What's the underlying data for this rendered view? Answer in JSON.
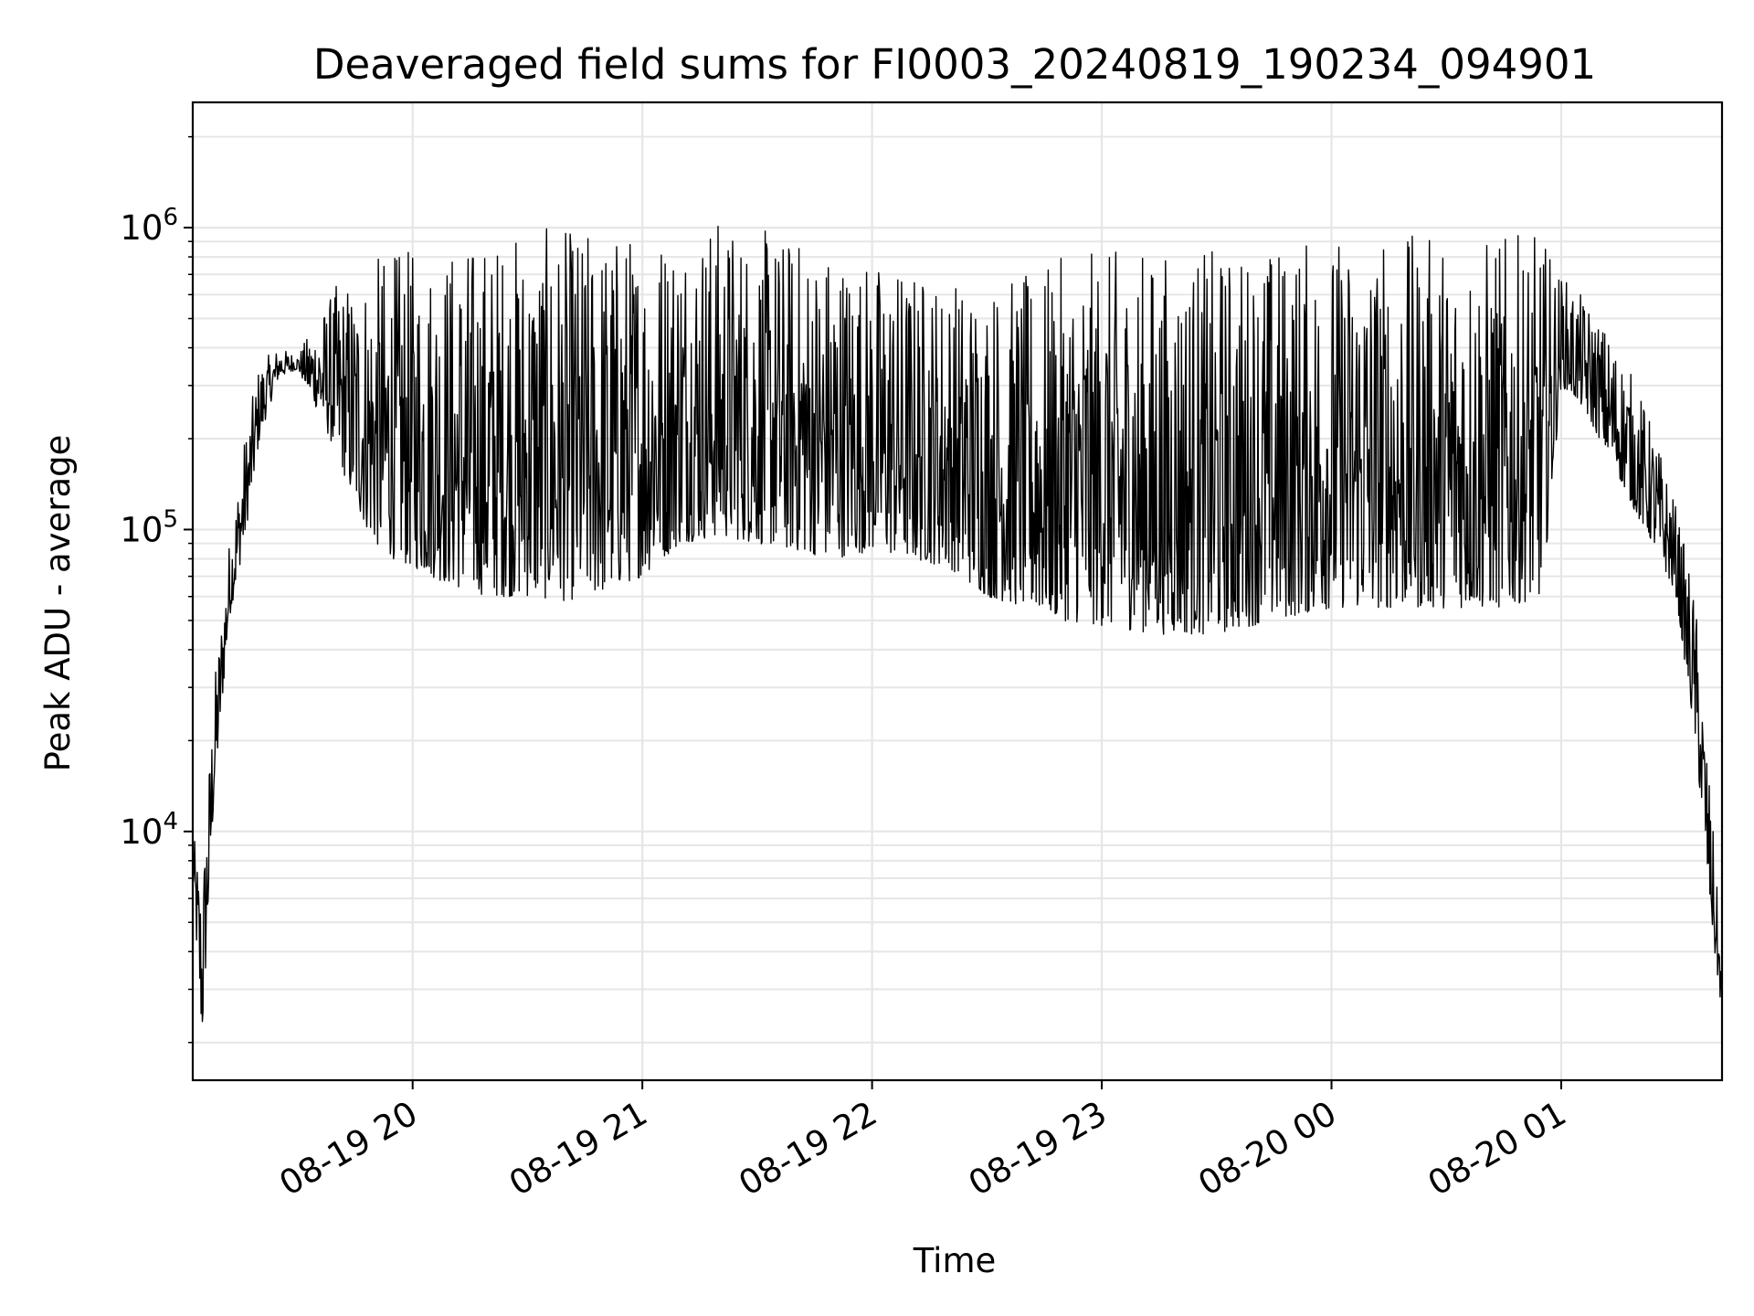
{
  "chart_data": {
    "type": "line",
    "title": "Deaveraged field sums for FI0003_20240819_190234_094901",
    "xlabel": "Time",
    "ylabel": "Peak ADU - average",
    "yscale": "log",
    "ylim": [
      1500,
      2600000
    ],
    "xlim": [
      "2024-08-19 19:02:34",
      "2024-08-20 01:42:00"
    ],
    "x_ticks": [
      {
        "time": "2024-08-19 20:00",
        "label": "08-19 20"
      },
      {
        "time": "2024-08-19 21:00",
        "label": "08-19 21"
      },
      {
        "time": "2024-08-19 22:00",
        "label": "08-19 22"
      },
      {
        "time": "2024-08-19 23:00",
        "label": "08-19 23"
      },
      {
        "time": "2024-08-20 00:00",
        "label": "08-20 00"
      },
      {
        "time": "2024-08-20 01:00",
        "label": "08-20 01"
      }
    ],
    "y_ticks": [
      {
        "value": 10000,
        "base": "10",
        "exp": "4"
      },
      {
        "value": 100000,
        "base": "10",
        "exp": "5"
      },
      {
        "value": 1000000,
        "base": "10",
        "exp": "6"
      }
    ],
    "grid": true,
    "line_color": "#000000",
    "grid_color": "#e6e6e6",
    "series": [
      {
        "x": [
          "2024-08-19 19:02:34",
          "2024-08-19 19:05:00",
          "2024-08-19 19:08:00",
          "2024-08-19 19:12:00",
          "2024-08-19 19:16:00",
          "2024-08-19 19:20:00",
          "2024-08-19 19:25:00",
          "2024-08-19 19:30:00",
          "2024-08-19 19:35:00",
          "2024-08-19 19:40:00",
          "2024-08-19 19:45:00",
          "2024-08-19 19:50:00",
          "2024-08-19 19:55:00",
          "2024-08-19 20:00:00",
          "2024-08-19 20:10:00",
          "2024-08-19 20:20:00",
          "2024-08-19 20:30:00",
          "2024-08-19 20:40:00",
          "2024-08-19 20:50:00",
          "2024-08-19 21:00:00",
          "2024-08-19 21:10:00",
          "2024-08-19 21:20:00",
          "2024-08-19 21:30:00",
          "2024-08-19 21:40:00",
          "2024-08-19 21:50:00",
          "2024-08-19 22:00:00",
          "2024-08-19 22:10:00",
          "2024-08-19 22:20:00",
          "2024-08-19 22:30:00",
          "2024-08-19 22:40:00",
          "2024-08-19 22:50:00",
          "2024-08-19 23:00:00",
          "2024-08-19 23:15:00",
          "2024-08-19 23:30:00",
          "2024-08-19 23:45:00",
          "2024-08-20 00:00:00",
          "2024-08-20 00:15:00",
          "2024-08-20 00:30:00",
          "2024-08-20 00:45:00",
          "2024-08-20 00:55:00",
          "2024-08-20 01:00:00",
          "2024-08-20 01:05:00",
          "2024-08-20 01:10:00",
          "2024-08-20 01:15:00",
          "2024-08-20 01:20:00",
          "2024-08-20 01:25:00",
          "2024-08-20 01:30:00",
          "2024-08-20 01:35:00",
          "2024-08-20 01:40:00",
          "2024-08-20 01:42:00"
        ],
        "low": [
          7000,
          2000,
          12000,
          50000,
          90000,
          200000,
          320000,
          340000,
          250000,
          180000,
          120000,
          90000,
          80000,
          75000,
          65000,
          60000,
          60000,
          58000,
          62000,
          70000,
          90000,
          95000,
          90000,
          85000,
          80000,
          85000,
          80000,
          75000,
          60000,
          55000,
          50000,
          48000,
          45000,
          45000,
          50000,
          55000,
          55000,
          55000,
          55000,
          60000,
          300000,
          260000,
          200000,
          150000,
          110000,
          85000,
          60000,
          20000,
          4000,
          2500
        ],
        "high": [
          10000,
          7000,
          30000,
          90000,
          200000,
          360000,
          400000,
          380000,
          500000,
          650000,
          700000,
          800000,
          850000,
          850000,
          900000,
          950000,
          1000000,
          1000000,
          1000000,
          1000000,
          1100000,
          1100000,
          1000000,
          950000,
          900000,
          800000,
          750000,
          700000,
          700000,
          700000,
          800000,
          850000,
          850000,
          850000,
          900000,
          950000,
          950000,
          950000,
          950000,
          950000,
          700000,
          600000,
          500000,
          400000,
          300000,
          200000,
          120000,
          60000,
          9000,
          3500
        ]
      }
    ]
  }
}
